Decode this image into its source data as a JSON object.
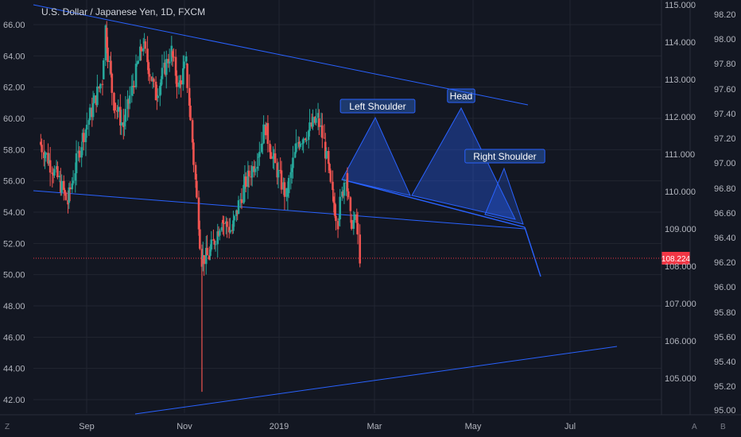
{
  "header": {
    "title": "U.S. Dollar / Japanese Yen, 1D, FXCM"
  },
  "chart_data": {
    "type": "candlestick",
    "title": "U.S. Dollar / Japanese Yen, 1D, FXCM",
    "left_axis": {
      "ticks": [
        "66.00",
        "64.00",
        "62.00",
        "60.00",
        "58.00",
        "56.00",
        "54.00",
        "52.00",
        "50.00",
        "48.00",
        "46.00",
        "44.00",
        "42.00"
      ]
    },
    "right_axis_outer": {
      "ticks": [
        "98.20",
        "98.00",
        "97.80",
        "97.60",
        "97.40",
        "97.20",
        "97.00",
        "96.80",
        "96.60",
        "96.40",
        "96.20",
        "96.00",
        "95.80",
        "95.60",
        "95.40",
        "95.20",
        "95.00"
      ]
    },
    "right_axis_inner": {
      "ticks": [
        "115.000",
        "114.000",
        "113.000",
        "112.000",
        "111.000",
        "110.000",
        "109.000",
        "108.000",
        "107.000",
        "106.000",
        "105.000"
      ]
    },
    "x_axis": {
      "ticks": [
        "Sep",
        "Nov",
        "2019",
        "Mar",
        "May",
        "Jul"
      ]
    },
    "last_price": {
      "value": "108.224",
      "color": "#f23645"
    },
    "colors": {
      "up": "#26a69a",
      "down": "#ef5350",
      "trendline": "#2962ff",
      "background": "#131722"
    },
    "annotations": {
      "left_shoulder": "Left Shoulder",
      "head": "Head",
      "right_shoulder": "Right Shoulder"
    },
    "pattern": "head-and-shoulders",
    "price_path_anchors": [
      {
        "date": "2018-08-01",
        "price": 58.5
      },
      {
        "date": "2018-08-20",
        "price": 56.0
      },
      {
        "date": "2018-08-28",
        "price": 54.6
      },
      {
        "date": "2018-09-10",
        "price": 58.5
      },
      {
        "date": "2018-09-30",
        "price": 62.5
      },
      {
        "date": "2018-10-03",
        "price": 65.8
      },
      {
        "date": "2018-10-11",
        "price": 61.0
      },
      {
        "date": "2018-10-20",
        "price": 59.5
      },
      {
        "date": "2018-11-08",
        "price": 64.8
      },
      {
        "date": "2018-11-20",
        "price": 61.5
      },
      {
        "date": "2018-12-05",
        "price": 64.3
      },
      {
        "date": "2018-12-12",
        "price": 62.0
      },
      {
        "date": "2018-12-19",
        "price": 63.5
      },
      {
        "date": "2018-12-28",
        "price": 56.0
      },
      {
        "date": "2019-01-03",
        "price": 51.0
      },
      {
        "date": "2019-01-10",
        "price": 51.2
      },
      {
        "date": "2019-01-22",
        "price": 53.5
      },
      {
        "date": "2019-02-01",
        "price": 52.8
      },
      {
        "date": "2019-02-12",
        "price": 55.5
      },
      {
        "date": "2019-02-25",
        "price": 57.5
      },
      {
        "date": "2019-03-05",
        "price": 59.5
      },
      {
        "date": "2019-03-12",
        "price": 57.5
      },
      {
        "date": "2019-03-25",
        "price": 55.0
      },
      {
        "date": "2019-04-05",
        "price": 58.5
      },
      {
        "date": "2019-04-15",
        "price": 59.2
      },
      {
        "date": "2019-04-24",
        "price": 60.0
      },
      {
        "date": "2019-04-30",
        "price": 58.5
      },
      {
        "date": "2019-05-08",
        "price": 55.0
      },
      {
        "date": "2019-05-13",
        "price": 53.5
      },
      {
        "date": "2019-05-21",
        "price": 56.5
      },
      {
        "date": "2019-05-25",
        "price": 53.5
      },
      {
        "date": "2019-05-31",
        "price": 53.3
      },
      {
        "date": "2019-06-03",
        "price": 51.2
      }
    ],
    "yen_vertical_spike": {
      "date": "2019-01-03",
      "low": 42.5
    }
  },
  "footer": {
    "left_btn": "Z",
    "right_btn_a": "A",
    "right_btn_b": "B"
  }
}
